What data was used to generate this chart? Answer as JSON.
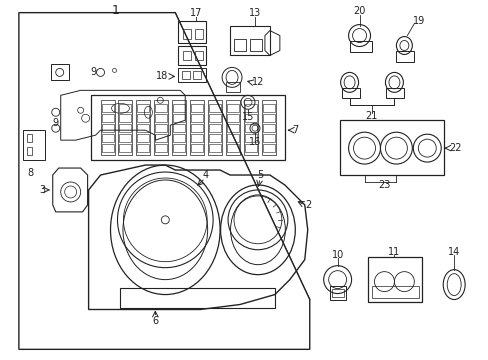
{
  "bg_color": "#ffffff",
  "line_color": "#222222",
  "fig_w": 4.89,
  "fig_h": 3.6,
  "dpi": 100
}
